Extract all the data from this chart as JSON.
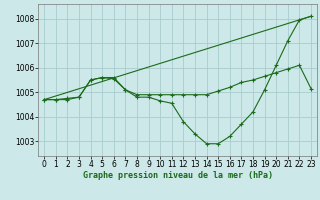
{
  "background_color": "#cce8e8",
  "grid_color": "#aacccc",
  "line_color": "#1a6b1a",
  "title": "Graphe pression niveau de la mer (hPa)",
  "xlim": [
    -0.5,
    23.5
  ],
  "ylim": [
    1002.4,
    1008.6
  ],
  "yticks": [
    1003,
    1004,
    1005,
    1006,
    1007,
    1008
  ],
  "xticks": [
    0,
    1,
    2,
    3,
    4,
    5,
    6,
    7,
    8,
    9,
    10,
    11,
    12,
    13,
    14,
    15,
    16,
    17,
    18,
    19,
    20,
    21,
    22,
    23
  ],
  "series": [
    {
      "x": [
        0,
        1,
        2,
        3,
        4,
        5,
        6,
        7,
        8,
        9,
        10,
        11,
        12,
        13,
        14,
        15,
        16,
        17,
        18,
        19,
        20,
        21,
        22,
        23
      ],
      "y": [
        1004.7,
        1004.7,
        1004.7,
        1004.8,
        1005.5,
        1005.6,
        1005.6,
        1005.1,
        1004.8,
        1004.8,
        1004.65,
        1004.55,
        1003.8,
        1003.3,
        1002.9,
        1002.9,
        1003.2,
        1003.7,
        1004.2,
        1005.1,
        1006.1,
        1007.1,
        1007.95,
        1008.1
      ]
    },
    {
      "x": [
        0,
        1,
        2,
        3,
        4,
        5,
        6,
        7,
        8,
        9,
        10,
        11,
        12,
        13,
        14,
        15,
        16,
        17,
        18,
        19,
        20,
        21,
        22,
        23
      ],
      "y": [
        1004.7,
        1004.7,
        1004.75,
        1004.8,
        1005.5,
        1005.6,
        1005.55,
        1005.1,
        1004.9,
        1004.9,
        1004.9,
        1004.9,
        1004.9,
        1004.9,
        1004.9,
        1005.05,
        1005.2,
        1005.4,
        1005.5,
        1005.65,
        1005.8,
        1005.95,
        1006.1,
        1005.15
      ]
    },
    {
      "x": [
        0,
        23
      ],
      "y": [
        1004.7,
        1008.1
      ]
    }
  ]
}
